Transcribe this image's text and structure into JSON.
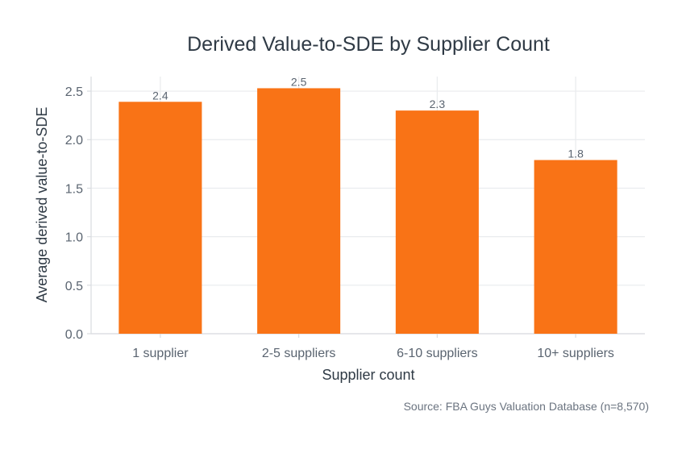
{
  "chart_data": {
    "type": "bar",
    "title": "Derived Value-to-SDE by Supplier Count",
    "xlabel": "Supplier count",
    "ylabel": "Average derived value-to-SDE",
    "categories": [
      "1 supplier",
      "2-5 suppliers",
      "6-10 suppliers",
      "10+ suppliers"
    ],
    "values": [
      2.39,
      2.53,
      2.3,
      1.79
    ],
    "data_labels": [
      "2.4",
      "2.5",
      "2.3",
      "1.8"
    ],
    "ylim": [
      0,
      2.65
    ],
    "yticks": [
      0,
      0.5,
      1.0,
      1.5,
      2.0,
      2.5
    ],
    "ytick_labels": [
      "0.0",
      "0.5",
      "1.0",
      "1.5",
      "2.0",
      "2.5"
    ],
    "grid": true,
    "bar_color": "#f97316",
    "source": "Source: FBA Guys Valuation Database (n=8,570)"
  }
}
